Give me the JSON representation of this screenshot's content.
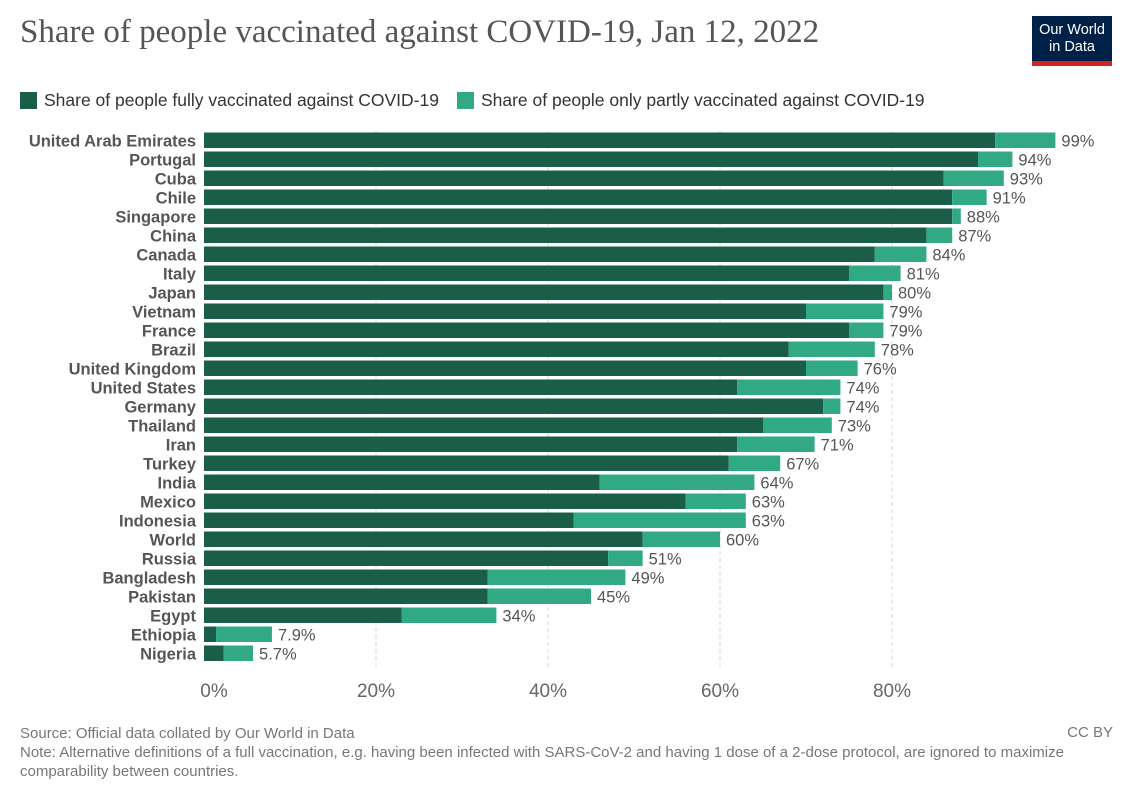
{
  "header": {
    "title": "Share of people vaccinated against COVID-19, Jan 12, 2022",
    "logo_line1": "Our World",
    "logo_line2": "in Data"
  },
  "colors": {
    "fully": "#1b5e48",
    "partly": "#30a984",
    "logo_bg": "#002147",
    "logo_accent": "#ce261e"
  },
  "chart_data": {
    "type": "bar",
    "orientation": "horizontal",
    "stacked": true,
    "title": "Share of people vaccinated against COVID-19, Jan 12, 2022",
    "xlim": [
      0,
      100
    ],
    "x_ticks": [
      0,
      20,
      40,
      60,
      80
    ],
    "x_tick_labels": [
      "0%",
      "20%",
      "40%",
      "60%",
      "80%"
    ],
    "grid": "vertical dashed",
    "legend_position": "top-left",
    "categories": [
      "United Arab Emirates",
      "Portugal",
      "Cuba",
      "Chile",
      "Singapore",
      "China",
      "Canada",
      "Italy",
      "Japan",
      "Vietnam",
      "France",
      "Brazil",
      "United Kingdom",
      "United States",
      "Germany",
      "Thailand",
      "Iran",
      "Turkey",
      "India",
      "Mexico",
      "Indonesia",
      "World",
      "Russia",
      "Bangladesh",
      "Pakistan",
      "Egypt",
      "Ethiopia",
      "Nigeria"
    ],
    "series": [
      {
        "name": "Share of people fully vaccinated against COVID-19",
        "values": [
          92,
          90,
          86,
          87,
          87,
          84,
          78,
          75,
          79,
          70,
          75,
          68,
          70,
          62,
          72,
          65,
          62,
          61,
          46,
          56,
          43,
          51,
          47,
          33,
          33,
          23,
          1.4,
          2.3
        ]
      },
      {
        "name": "Share of people only partly vaccinated against COVID-19",
        "values": [
          7,
          4,
          7,
          4,
          1,
          3,
          6,
          6,
          1,
          9,
          4,
          10,
          6,
          12,
          2,
          8,
          9,
          6,
          18,
          7,
          20,
          9,
          4,
          16,
          12,
          11,
          6.5,
          3.4
        ]
      }
    ],
    "total_labels": [
      "99%",
      "94%",
      "93%",
      "91%",
      "88%",
      "87%",
      "84%",
      "81%",
      "80%",
      "79%",
      "79%",
      "78%",
      "76%",
      "74%",
      "74%",
      "73%",
      "71%",
      "67%",
      "64%",
      "63%",
      "63%",
      "60%",
      "51%",
      "49%",
      "45%",
      "34%",
      "7.9%",
      "5.7%"
    ]
  },
  "footer": {
    "source": "Source: Official data collated by Our World in Data",
    "note": "Note: Alternative definitions of a full vaccination, e.g. having been infected with SARS-CoV-2 and having 1 dose of a 2-dose protocol, are ignored to maximize comparability between countries.",
    "license": "CC BY"
  }
}
